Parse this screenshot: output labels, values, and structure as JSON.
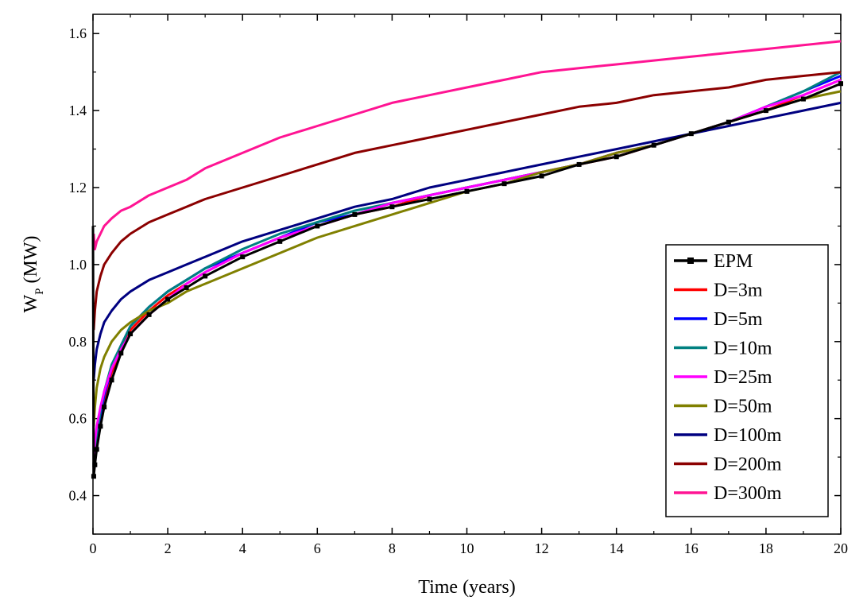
{
  "chart_data": {
    "type": "line",
    "title": "",
    "xlabel": "Time (years)",
    "ylabel_main": "W",
    "ylabel_sub": "P",
    "ylabel_unit": " (MW)",
    "xlim": [
      0,
      20
    ],
    "ylim": [
      0.3,
      1.65
    ],
    "xticks": [
      0,
      2,
      4,
      6,
      8,
      10,
      12,
      14,
      16,
      18,
      20
    ],
    "yticks": [
      0.4,
      0.6,
      0.8,
      1.0,
      1.2,
      1.4,
      1.6
    ],
    "xtick_labels": [
      "0",
      "2",
      "4",
      "6",
      "8",
      "10",
      "12",
      "14",
      "16",
      "18",
      "20"
    ],
    "ytick_labels": [
      "0.4",
      "0.6",
      "0.8",
      "1.0",
      "1.2",
      "1.4",
      "1.6"
    ],
    "legend_position": "bottom-right",
    "series": [
      {
        "name": "EPM",
        "color": "#000000",
        "marker": "square",
        "x": [
          0,
          0.02,
          0.05,
          0.1,
          0.2,
          0.3,
          0.5,
          0.75,
          1,
          1.5,
          2,
          2.5,
          3,
          4,
          5,
          6,
          7,
          8,
          9,
          10,
          11,
          12,
          13,
          14,
          15,
          16,
          17,
          18,
          19,
          20
        ],
        "y": [
          1.1,
          0.45,
          0.48,
          0.52,
          0.58,
          0.63,
          0.7,
          0.77,
          0.82,
          0.87,
          0.91,
          0.94,
          0.97,
          1.02,
          1.06,
          1.1,
          1.13,
          1.15,
          1.17,
          1.19,
          1.21,
          1.23,
          1.26,
          1.28,
          1.31,
          1.34,
          1.37,
          1.4,
          1.43,
          1.47
        ]
      },
      {
        "name": "D=3m",
        "color": "#ff0000",
        "marker": "none",
        "x": [
          0.02,
          0.05,
          0.1,
          0.2,
          0.3,
          0.5,
          0.75,
          1,
          1.5,
          2,
          2.5,
          3,
          4,
          5,
          6,
          7,
          8,
          9,
          10,
          11,
          12,
          13,
          14,
          15,
          16,
          17,
          18,
          19,
          20
        ],
        "y": [
          0.47,
          0.5,
          0.54,
          0.6,
          0.65,
          0.72,
          0.78,
          0.83,
          0.88,
          0.92,
          0.95,
          0.98,
          1.03,
          1.07,
          1.1,
          1.13,
          1.15,
          1.18,
          1.2,
          1.22,
          1.24,
          1.26,
          1.28,
          1.31,
          1.34,
          1.37,
          1.4,
          1.44,
          1.48
        ]
      },
      {
        "name": "D=5m",
        "color": "#0000ff",
        "marker": "none",
        "x": [
          0.02,
          0.05,
          0.1,
          0.2,
          0.3,
          0.5,
          0.75,
          1,
          1.5,
          2,
          2.5,
          3,
          4,
          5,
          6,
          7,
          8,
          9,
          10,
          11,
          12,
          13,
          14,
          15,
          16,
          17,
          18,
          19,
          20
        ],
        "y": [
          0.47,
          0.51,
          0.55,
          0.61,
          0.66,
          0.73,
          0.79,
          0.84,
          0.89,
          0.93,
          0.96,
          0.99,
          1.03,
          1.07,
          1.11,
          1.13,
          1.16,
          1.18,
          1.2,
          1.22,
          1.24,
          1.26,
          1.29,
          1.31,
          1.34,
          1.37,
          1.41,
          1.45,
          1.49
        ]
      },
      {
        "name": "D=10m",
        "color": "#008080",
        "marker": "none",
        "x": [
          0.02,
          0.05,
          0.1,
          0.2,
          0.3,
          0.5,
          0.75,
          1,
          1.5,
          2,
          2.5,
          3,
          4,
          5,
          6,
          7,
          8,
          9,
          10,
          11,
          12,
          13,
          14,
          15,
          16,
          17,
          18,
          19,
          20
        ],
        "y": [
          0.48,
          0.52,
          0.56,
          0.62,
          0.67,
          0.74,
          0.79,
          0.84,
          0.89,
          0.93,
          0.96,
          0.99,
          1.04,
          1.08,
          1.11,
          1.14,
          1.16,
          1.18,
          1.2,
          1.22,
          1.24,
          1.26,
          1.29,
          1.31,
          1.34,
          1.37,
          1.41,
          1.45,
          1.5
        ]
      },
      {
        "name": "D=25m",
        "color": "#ff00ff",
        "marker": "none",
        "x": [
          0.02,
          0.05,
          0.1,
          0.2,
          0.3,
          0.5,
          0.75,
          1,
          1.5,
          2,
          2.5,
          3,
          4,
          5,
          6,
          7,
          8,
          9,
          10,
          11,
          12,
          13,
          14,
          15,
          16,
          17,
          18,
          19,
          20
        ],
        "y": [
          0.5,
          0.54,
          0.58,
          0.63,
          0.67,
          0.73,
          0.78,
          0.82,
          0.87,
          0.91,
          0.95,
          0.98,
          1.03,
          1.07,
          1.1,
          1.13,
          1.16,
          1.18,
          1.2,
          1.22,
          1.24,
          1.26,
          1.29,
          1.31,
          1.34,
          1.37,
          1.41,
          1.44,
          1.48
        ]
      },
      {
        "name": "D=50m",
        "color": "#808000",
        "marker": "none",
        "x": [
          0.02,
          0.05,
          0.1,
          0.2,
          0.3,
          0.5,
          0.75,
          1,
          1.5,
          2,
          2.5,
          3,
          4,
          5,
          6,
          7,
          8,
          9,
          10,
          11,
          12,
          13,
          14,
          15,
          16,
          17,
          18,
          19,
          20
        ],
        "y": [
          0.58,
          0.63,
          0.68,
          0.73,
          0.76,
          0.8,
          0.83,
          0.85,
          0.88,
          0.9,
          0.93,
          0.95,
          0.99,
          1.03,
          1.07,
          1.1,
          1.13,
          1.16,
          1.19,
          1.21,
          1.24,
          1.26,
          1.29,
          1.31,
          1.34,
          1.37,
          1.4,
          1.43,
          1.45
        ]
      },
      {
        "name": "D=100m",
        "color": "#000080",
        "marker": "none",
        "x": [
          0.02,
          0.05,
          0.1,
          0.2,
          0.3,
          0.5,
          0.75,
          1,
          1.5,
          2,
          2.5,
          3,
          4,
          5,
          6,
          7,
          8,
          9,
          10,
          11,
          12,
          13,
          14,
          15,
          16,
          17,
          18,
          19,
          20
        ],
        "y": [
          0.7,
          0.74,
          0.78,
          0.82,
          0.85,
          0.88,
          0.91,
          0.93,
          0.96,
          0.98,
          1.0,
          1.02,
          1.06,
          1.09,
          1.12,
          1.15,
          1.17,
          1.2,
          1.22,
          1.24,
          1.26,
          1.28,
          1.3,
          1.32,
          1.34,
          1.36,
          1.38,
          1.4,
          1.42
        ]
      },
      {
        "name": "D=200m",
        "color": "#8b0000",
        "marker": "none",
        "x": [
          0.02,
          0.05,
          0.1,
          0.2,
          0.3,
          0.5,
          0.75,
          1,
          1.5,
          2,
          2.5,
          3,
          4,
          5,
          6,
          7,
          8,
          9,
          10,
          11,
          12,
          13,
          14,
          15,
          16,
          17,
          18,
          19,
          20
        ],
        "y": [
          0.83,
          0.88,
          0.93,
          0.97,
          1.0,
          1.03,
          1.06,
          1.08,
          1.11,
          1.13,
          1.15,
          1.17,
          1.2,
          1.23,
          1.26,
          1.29,
          1.31,
          1.33,
          1.35,
          1.37,
          1.39,
          1.41,
          1.42,
          1.44,
          1.45,
          1.46,
          1.48,
          1.49,
          1.5
        ]
      },
      {
        "name": "D=300m",
        "color": "#ff1493",
        "marker": "none",
        "x": [
          0.02,
          0.05,
          0.1,
          0.2,
          0.3,
          0.5,
          0.75,
          1,
          1.5,
          2,
          2.5,
          3,
          4,
          5,
          6,
          7,
          8,
          9,
          10,
          11,
          12,
          13,
          14,
          15,
          16,
          17,
          18,
          19,
          20
        ],
        "y": [
          1.08,
          1.04,
          1.06,
          1.08,
          1.1,
          1.12,
          1.14,
          1.15,
          1.18,
          1.2,
          1.22,
          1.25,
          1.29,
          1.33,
          1.36,
          1.39,
          1.42,
          1.44,
          1.46,
          1.48,
          1.5,
          1.51,
          1.52,
          1.53,
          1.54,
          1.55,
          1.56,
          1.57,
          1.58
        ]
      }
    ]
  }
}
